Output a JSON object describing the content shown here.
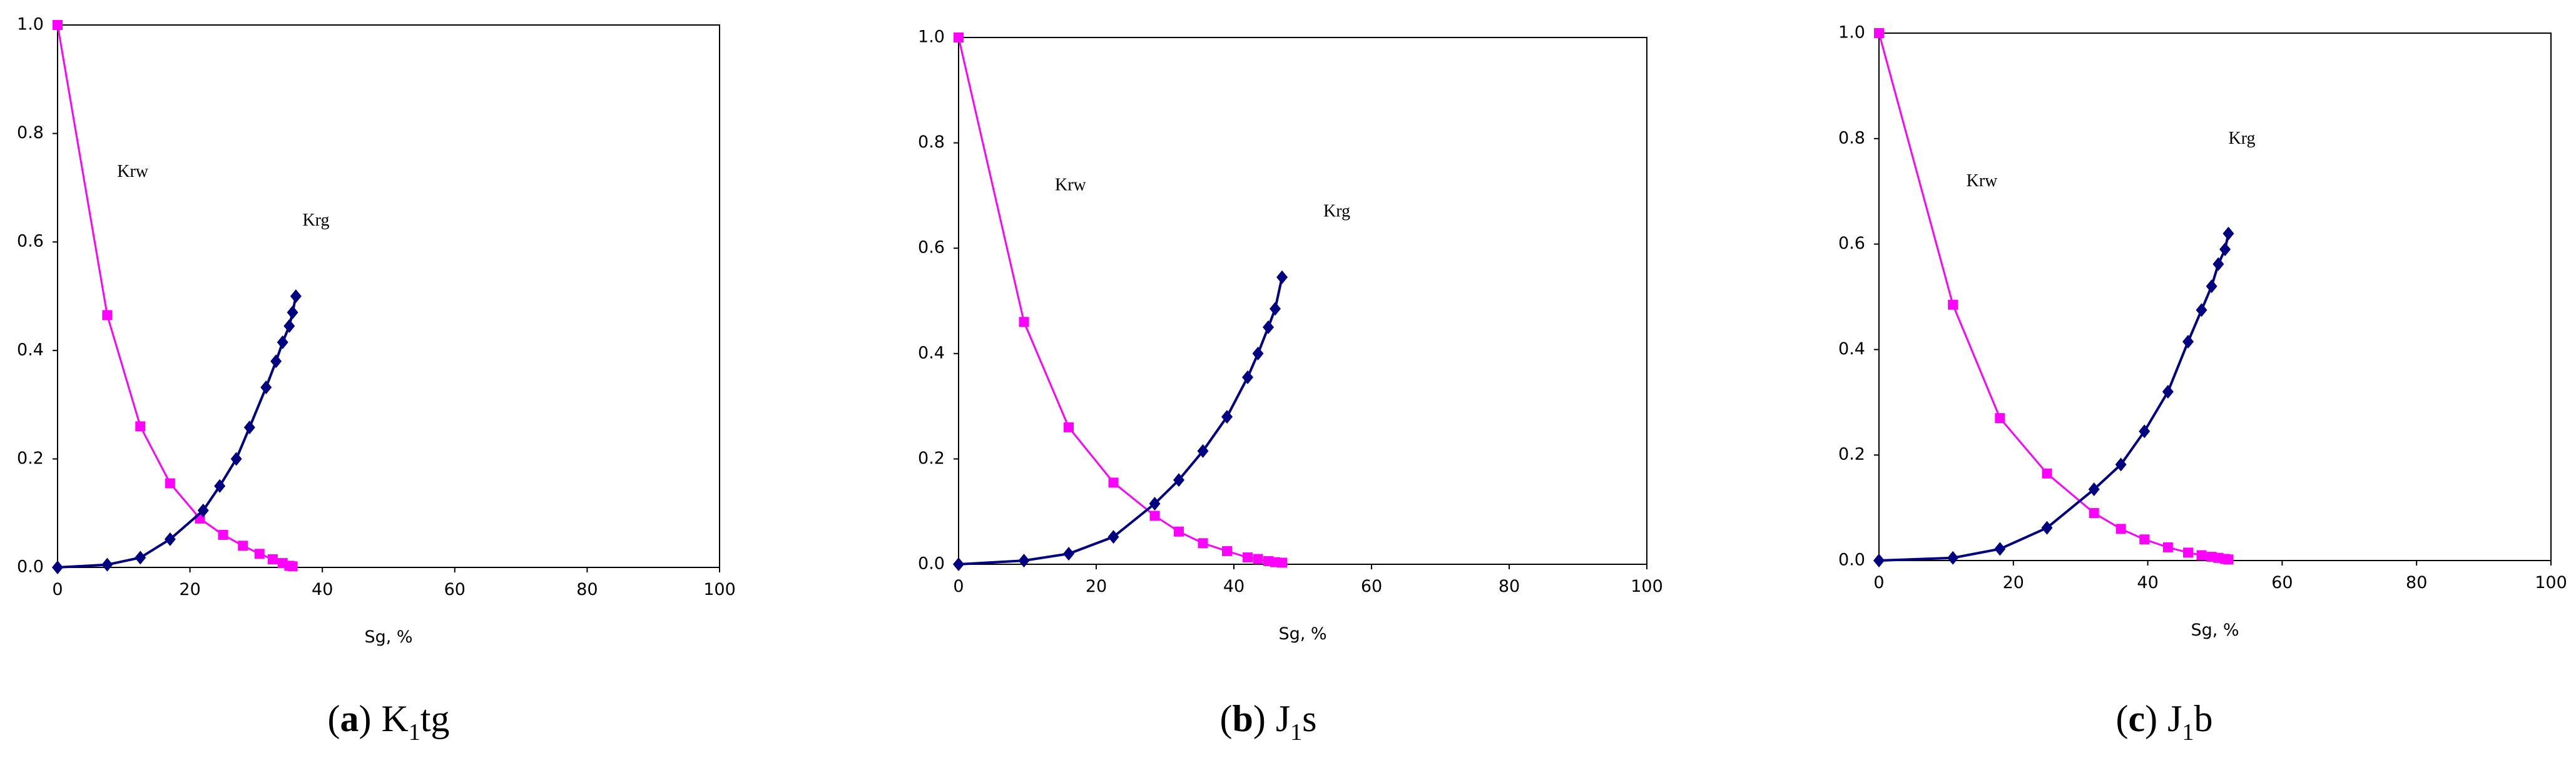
{
  "chart_data": [
    {
      "type": "line",
      "xlabel": "Sg, %",
      "caption": {
        "open": "(",
        "letter": "a",
        "close": ")",
        "main": "K",
        "sub": "1",
        "rest": "tg"
      },
      "xlim": [
        0,
        100
      ],
      "xticks": [
        0,
        20,
        40,
        60,
        80,
        100
      ],
      "ylim": [
        0,
        1
      ],
      "yticks": [
        {
          "value": 0,
          "label": "0.0"
        },
        0.2,
        0.4,
        0.6,
        0.8,
        {
          "value": 1,
          "label": "1.0"
        }
      ],
      "series": [
        {
          "name": "Krw",
          "color": "#ff00ff",
          "marker": "square",
          "x": [
            0,
            7.5,
            12.5,
            17,
            21.5,
            25,
            28,
            30.5,
            32.5,
            34,
            35,
            35.5
          ],
          "values": [
            1,
            0.465,
            0.26,
            0.155,
            0.09,
            0.06,
            0.04,
            0.025,
            0.015,
            0.008,
            0.003,
            0.002
          ]
        },
        {
          "name": "Krg",
          "color": "#000080",
          "marker": "diamond",
          "x": [
            0,
            7.5,
            12.5,
            17,
            22,
            24.5,
            27,
            29,
            31.5,
            33,
            34,
            35,
            35.5,
            36
          ],
          "values": [
            0,
            0.005,
            0.018,
            0.052,
            0.105,
            0.15,
            0.2,
            0.258,
            0.332,
            0.38,
            0.415,
            0.445,
            0.47,
            0.5
          ]
        }
      ]
    },
    {
      "type": "line",
      "xlabel": "Sg, %",
      "caption": {
        "open": "(",
        "letter": "b",
        "close": ")",
        "main": "J",
        "sub": "1",
        "rest": "s"
      },
      "xlim": [
        0,
        100
      ],
      "xticks": [
        0,
        20,
        40,
        60,
        80,
        100
      ],
      "ylim": [
        0,
        1
      ],
      "yticks": [
        {
          "value": 0,
          "label": "0.0"
        },
        0.2,
        0.4,
        0.6,
        0.8,
        {
          "value": 1,
          "label": "1.0"
        }
      ],
      "series": [
        {
          "name": "Krw",
          "color": "#ff00ff",
          "marker": "square",
          "x": [
            0,
            9.5,
            16,
            22.5,
            28.5,
            32,
            35.5,
            39,
            42,
            43.5,
            45,
            46,
            47
          ],
          "values": [
            1,
            0.46,
            0.26,
            0.155,
            0.092,
            0.062,
            0.04,
            0.025,
            0.013,
            0.01,
            0.006,
            0.004,
            0.003
          ]
        },
        {
          "name": "Krg",
          "color": "#000080",
          "marker": "diamond",
          "x": [
            0,
            9.5,
            16,
            22.5,
            28.5,
            32,
            35.5,
            39,
            42,
            43.5,
            45,
            46,
            47
          ],
          "values": [
            0,
            0.007,
            0.02,
            0.052,
            0.115,
            0.16,
            0.215,
            0.28,
            0.355,
            0.4,
            0.45,
            0.485,
            0.545
          ]
        }
      ]
    },
    {
      "type": "line",
      "xlabel": "Sg, %",
      "caption": {
        "open": "(",
        "letter": "c",
        "close": ")",
        "main": "J",
        "sub": "1",
        "rest": "b"
      },
      "xlim": [
        0,
        100
      ],
      "xticks": [
        0,
        20,
        40,
        60,
        80,
        100
      ],
      "ylim": [
        0,
        1
      ],
      "yticks": [
        {
          "value": 0,
          "label": "0.0"
        },
        0.2,
        0.4,
        0.6,
        0.8,
        {
          "value": 1,
          "label": "1.0"
        }
      ],
      "series": [
        {
          "name": "Krw",
          "color": "#ff00ff",
          "marker": "square",
          "x": [
            0,
            11,
            18,
            25,
            32,
            36,
            39.5,
            43,
            46,
            48,
            49.5,
            50.5,
            51.5,
            52
          ],
          "values": [
            1,
            0.485,
            0.27,
            0.165,
            0.09,
            0.06,
            0.04,
            0.025,
            0.015,
            0.01,
            0.007,
            0.005,
            0.003,
            0.002
          ]
        },
        {
          "name": "Krg",
          "color": "#000080",
          "marker": "diamond",
          "x": [
            0,
            11,
            18,
            25,
            32,
            36,
            39.5,
            43,
            46,
            48,
            49.5,
            50.5,
            51.5,
            52
          ],
          "values": [
            0,
            0.005,
            0.022,
            0.062,
            0.135,
            0.182,
            0.245,
            0.32,
            0.415,
            0.475,
            0.52,
            0.562,
            0.59,
            0.62
          ]
        }
      ]
    }
  ]
}
